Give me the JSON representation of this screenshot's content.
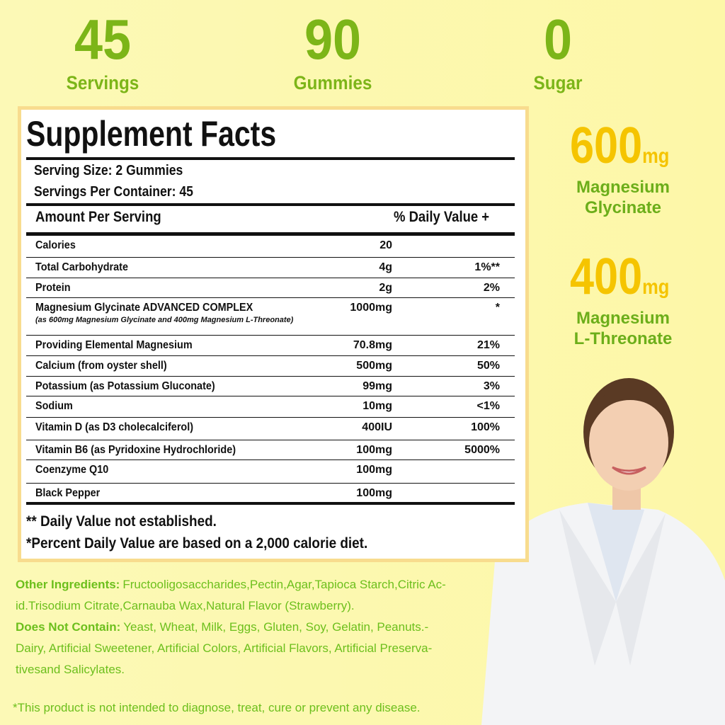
{
  "stats": [
    {
      "value": "45",
      "label": "Servings"
    },
    {
      "value": "90",
      "label": "Gummies"
    },
    {
      "value": "0",
      "label": "Sugar"
    }
  ],
  "highlights": [
    {
      "amount": "600",
      "unit": "mg",
      "lines": [
        "Magnesium",
        "Glycinate"
      ]
    },
    {
      "amount": "400",
      "unit": "mg",
      "lines": [
        "Magnesium",
        "L-Threonate"
      ]
    }
  ],
  "facts": {
    "title": "Supplement Facts",
    "serving_size": "Serving Size: 2 Gummies",
    "servings_per_container": "Servings Per Container: 45",
    "header": [
      "Amount Per Serving",
      "% Daily Value +"
    ],
    "rows": [
      {
        "name": "Calories",
        "amount": "20",
        "dv": null
      },
      {
        "name": "Total Carbohydrate",
        "amount": "4g",
        "dv": "1%**"
      },
      {
        "name": "Protein",
        "amount": "2g",
        "dv": "2%"
      },
      {
        "name": "Magnesium Glycinate ADVANCED COMPLEX",
        "note": "(as 600mg Magnesium Glycinate and 400mg Magnesium L-Threonate)",
        "amount": "1000mg",
        "dv": "*"
      },
      {
        "name": "Providing Elemental Magnesium",
        "amount": "70.8mg",
        "dv": "21%"
      },
      {
        "name": "Calcium (from oyster shell)",
        "amount": "500mg",
        "dv": "50%"
      },
      {
        "name": "Potassium (as Potassium Gluconate)",
        "amount": "99mg",
        "dv": "3%"
      },
      {
        "name": "Sodium",
        "amount": "10mg",
        "dv": "<1%"
      },
      {
        "name": "Vitamin D (as D3 cholecalciferol)",
        "amount": "400IU",
        "dv": "100%"
      },
      {
        "name": "Vitamin B6 (as Pyridoxine Hydrochloride)",
        "amount": "100mg",
        "dv": "5000%"
      },
      {
        "name": "Coenzyme Q10",
        "amount": "100mg",
        "dv": null
      },
      {
        "name": "Black Pepper",
        "amount": "100mg",
        "dv": null
      }
    ],
    "footnotes": [
      "** Daily Value not established.",
      "*Percent Daily Value are based on a 2,000 calorie diet."
    ]
  },
  "other_ingredients": {
    "label": "Other Ingredients:",
    "lines": [
      "Fructooligosaccharides,Pectin,Agar,Tapioca Starch,Citric Ac-",
      "id.Trisodium Citrate,Carnauba Wax,Natural Flavor (Strawberry)."
    ]
  },
  "does_not_contain": {
    "label": "Does Not Contain:",
    "lines": [
      "Yeast, Wheat, Milk, Eggs, Gluten, Soy, Gelatin, Peanuts.-",
      "Dairy, Artificial Sweetener, Artificial Colors, Artificial Flavors, Artificial Preserva-",
      "tivesand Salicylates."
    ]
  },
  "disclaimer": "*This product is not intended to diagnose, treat, cure or prevent any disease."
}
